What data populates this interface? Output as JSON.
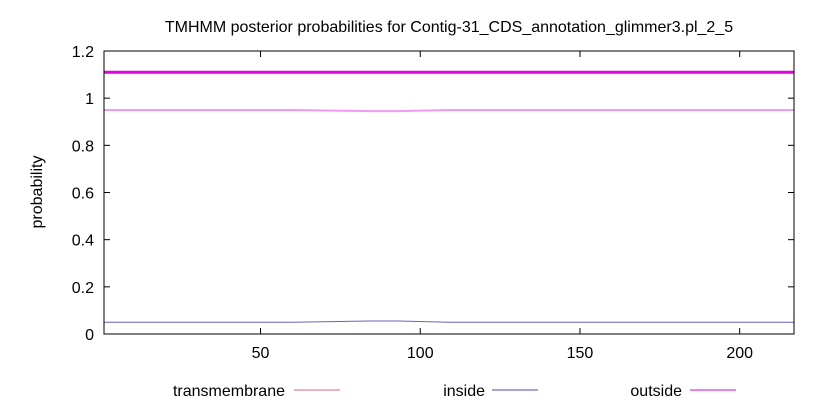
{
  "chart_data": {
    "type": "line",
    "title": "TMHMM posterior probabilities for Contig-31_CDS_annotation_glimmer3.pl_2_5",
    "xlabel": "",
    "ylabel": "probability",
    "xlim": [
      1,
      217
    ],
    "ylim": [
      0,
      1.2
    ],
    "x_ticks": [
      50,
      100,
      150,
      200
    ],
    "x_tick_labels": [
      "50",
      "100",
      "150",
      "200"
    ],
    "y_ticks": [
      0,
      0.2,
      0.4,
      0.6,
      0.8,
      1,
      1.2
    ],
    "y_tick_labels": [
      "0",
      "0.2",
      "0.4",
      "0.6",
      "0.8",
      "1",
      "1.2"
    ],
    "grid": false,
    "legend_position": "bottom",
    "series": [
      {
        "name": "transmembrane",
        "color": "#e06080",
        "x": [
          1,
          217
        ],
        "values": [
          0,
          0
        ]
      },
      {
        "name": "inside",
        "color": "#4a4ab0",
        "x": [
          1,
          60,
          84,
          93,
          109,
          217
        ],
        "values": [
          0.05,
          0.05,
          0.055,
          0.055,
          0.05,
          0.05
        ]
      },
      {
        "name": "outside",
        "color": "#e000e0",
        "x": [
          1,
          60,
          84,
          93,
          109,
          217
        ],
        "values": [
          0.95,
          0.95,
          0.945,
          0.945,
          0.95,
          0.95
        ]
      }
    ],
    "annotations": [
      {
        "kind": "outside-segment",
        "color": "#e000e0",
        "x_start": 1,
        "x_end": 217,
        "y": 1.11
      }
    ]
  }
}
